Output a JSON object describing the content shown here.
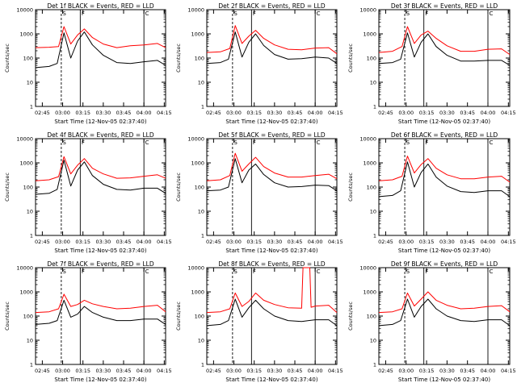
{
  "chart_data": [
    {
      "type": "line",
      "title": "Det 1f BLACK = Events, RED = LLD",
      "xlabel": "Start Time (12-Nov-05 02:37:40)",
      "ylabel": "Counts/sec",
      "yscale": "log",
      "ylim": [
        1,
        10000
      ],
      "xlim": [
        "02:40",
        "04:16"
      ],
      "grid": false,
      "x_ticks": [
        "02:45",
        "03:00",
        "03:15",
        "03:30",
        "03:45",
        "04:00",
        "04:15"
      ],
      "y_ticks": [
        "1",
        "10",
        "100",
        "1000",
        "10000"
      ],
      "markers": [
        {
          "label": "S",
          "x": "02:59",
          "style": "dashed"
        },
        {
          "label": "F",
          "x": "03:13",
          "style": "solid"
        },
        {
          "label": "C",
          "x": "04:00",
          "style": "solid"
        }
      ],
      "series": [
        {
          "color": "#ff0000",
          "x": [
            "02:40",
            "02:50",
            "02:57",
            "03:01",
            "03:06",
            "03:11",
            "03:16",
            "03:22",
            "03:30",
            "03:40",
            "03:50",
            "04:00",
            "04:10",
            "04:16"
          ],
          "values": [
            270,
            280,
            300,
            2000,
            380,
            900,
            1600,
            700,
            380,
            270,
            320,
            350,
            400,
            270
          ]
        },
        {
          "color": "#000000",
          "x": [
            "02:40",
            "02:50",
            "02:56",
            "03:01",
            "03:06",
            "03:11",
            "03:16",
            "03:22",
            "03:30",
            "03:40",
            "03:50",
            "04:00",
            "04:10",
            "04:16"
          ],
          "values": [
            40,
            45,
            60,
            1100,
            100,
            500,
            1200,
            350,
            130,
            65,
            60,
            70,
            80,
            50
          ]
        }
      ]
    },
    {
      "type": "line",
      "title": "Det 2f BLACK = Events, RED = LLD",
      "xlabel": "Start Time (12-Nov-05 02:37:40)",
      "ylabel": "Counts/sec",
      "yscale": "log",
      "ylim": [
        1,
        10000
      ],
      "xlim": [
        "02:40",
        "04:16"
      ],
      "grid": false,
      "x_ticks": [
        "02:45",
        "03:00",
        "03:15",
        "03:30",
        "03:45",
        "04:00",
        "04:15"
      ],
      "y_ticks": [
        "1",
        "10",
        "100",
        "1000",
        "10000"
      ],
      "markers": [
        {
          "label": "S",
          "x": "02:59",
          "style": "dashed"
        },
        {
          "label": "F",
          "x": "03:13",
          "style": "solid"
        },
        {
          "label": "C",
          "x": "04:00",
          "style": "solid"
        }
      ],
      "series": [
        {
          "color": "#ff0000",
          "x": [
            "02:40",
            "02:50",
            "02:57",
            "03:01",
            "03:06",
            "03:11",
            "03:16",
            "03:22",
            "03:30",
            "03:40",
            "03:50",
            "04:00",
            "04:10",
            "04:16"
          ],
          "values": [
            170,
            180,
            250,
            2200,
            400,
            800,
            1400,
            650,
            350,
            230,
            220,
            260,
            270,
            150
          ]
        },
        {
          "color": "#000000",
          "x": [
            "02:40",
            "02:50",
            "02:56",
            "03:01",
            "03:06",
            "03:11",
            "03:16",
            "03:22",
            "03:30",
            "03:40",
            "03:50",
            "04:00",
            "04:10",
            "04:16"
          ],
          "values": [
            60,
            65,
            90,
            1200,
            110,
            450,
            1000,
            330,
            140,
            90,
            95,
            110,
            100,
            60
          ]
        }
      ]
    },
    {
      "type": "line",
      "title": "Det 3f BLACK = Events, RED = LLD",
      "xlabel": "Start Time (12-Nov-05 02:37:40)",
      "ylabel": "Counts/sec",
      "yscale": "log",
      "ylim": [
        1,
        10000
      ],
      "xlim": [
        "02:40",
        "04:16"
      ],
      "grid": false,
      "x_ticks": [
        "02:45",
        "03:00",
        "03:15",
        "03:30",
        "03:45",
        "04:00",
        "04:15"
      ],
      "y_ticks": [
        "1",
        "10",
        "100",
        "1000",
        "10000"
      ],
      "markers": [
        {
          "label": "S",
          "x": "02:59",
          "style": "dashed"
        },
        {
          "label": "F",
          "x": "03:13",
          "style": "solid"
        },
        {
          "label": "C",
          "x": "04:00",
          "style": "solid"
        }
      ],
      "series": [
        {
          "color": "#ff0000",
          "x": [
            "02:40",
            "02:50",
            "02:57",
            "03:01",
            "03:06",
            "03:11",
            "03:16",
            "03:22",
            "03:30",
            "03:40",
            "03:50",
            "04:00",
            "04:10",
            "04:16"
          ],
          "values": [
            170,
            190,
            300,
            2000,
            400,
            900,
            1300,
            650,
            320,
            190,
            190,
            230,
            240,
            140
          ]
        },
        {
          "color": "#000000",
          "x": [
            "02:40",
            "02:50",
            "02:56",
            "03:01",
            "03:06",
            "03:11",
            "03:16",
            "03:22",
            "03:30",
            "03:40",
            "03:50",
            "04:00",
            "04:10",
            "04:16"
          ],
          "values": [
            60,
            65,
            90,
            1100,
            110,
            450,
            1000,
            300,
            130,
            75,
            75,
            80,
            80,
            50
          ]
        }
      ]
    },
    {
      "type": "line",
      "title": "Det 4f BLACK = Events, RED = LLD",
      "xlabel": "Start Time (12-Nov-05 02:37:40)",
      "ylabel": "Counts/sec",
      "yscale": "log",
      "ylim": [
        1,
        10000
      ],
      "xlim": [
        "02:40",
        "04:16"
      ],
      "grid": false,
      "x_ticks": [
        "02:45",
        "03:00",
        "03:15",
        "03:30",
        "03:45",
        "04:00",
        "04:15"
      ],
      "y_ticks": [
        "1",
        "10",
        "100",
        "1000",
        "10000"
      ],
      "markers": [
        {
          "label": "S",
          "x": "02:59",
          "style": "dashed"
        },
        {
          "label": "F",
          "x": "03:13",
          "style": "solid"
        },
        {
          "label": "C",
          "x": "04:00",
          "style": "solid"
        }
      ],
      "series": [
        {
          "color": "#ff0000",
          "x": [
            "02:40",
            "02:50",
            "02:57",
            "03:01",
            "03:06",
            "03:11",
            "03:16",
            "03:22",
            "03:30",
            "03:40",
            "03:50",
            "04:00",
            "04:10",
            "04:16"
          ],
          "values": [
            180,
            200,
            270,
            1800,
            350,
            800,
            1500,
            600,
            350,
            230,
            240,
            280,
            320,
            230
          ]
        },
        {
          "color": "#000000",
          "x": [
            "02:40",
            "02:50",
            "02:56",
            "03:01",
            "03:06",
            "03:11",
            "03:16",
            "03:22",
            "03:30",
            "03:40",
            "03:50",
            "04:00",
            "04:10",
            "04:16"
          ],
          "values": [
            50,
            55,
            80,
            1300,
            110,
            500,
            1100,
            300,
            130,
            80,
            75,
            90,
            90,
            55
          ]
        }
      ]
    },
    {
      "type": "line",
      "title": "Det 5f BLACK = Events, RED = LLD",
      "xlabel": "Start Time (12-Nov-05 02:37:40)",
      "ylabel": "Counts/sec",
      "yscale": "log",
      "ylim": [
        1,
        10000
      ],
      "xlim": [
        "02:40",
        "04:16"
      ],
      "grid": false,
      "x_ticks": [
        "02:45",
        "03:00",
        "03:15",
        "03:30",
        "03:45",
        "04:00",
        "04:15"
      ],
      "y_ticks": [
        "1",
        "10",
        "100",
        "1000",
        "10000"
      ],
      "markers": [
        {
          "label": "S",
          "x": "02:59",
          "style": "dashed"
        },
        {
          "label": "F",
          "x": "03:13",
          "style": "solid"
        },
        {
          "label": "C",
          "x": "04:00",
          "style": "solid"
        }
      ],
      "series": [
        {
          "color": "#ff0000",
          "x": [
            "02:40",
            "02:50",
            "02:57",
            "03:01",
            "03:06",
            "03:11",
            "03:16",
            "03:22",
            "03:30",
            "03:40",
            "03:50",
            "04:00",
            "04:10",
            "04:16"
          ],
          "values": [
            180,
            200,
            300,
            2500,
            450,
            900,
            1700,
            700,
            380,
            260,
            260,
            300,
            340,
            220
          ]
        },
        {
          "color": "#000000",
          "x": [
            "02:40",
            "02:50",
            "02:56",
            "03:01",
            "03:06",
            "03:11",
            "03:16",
            "03:22",
            "03:30",
            "03:40",
            "03:50",
            "04:00",
            "04:10",
            "04:16"
          ],
          "values": [
            70,
            75,
            100,
            1500,
            150,
            500,
            900,
            330,
            150,
            100,
            105,
            120,
            115,
            70
          ]
        }
      ]
    },
    {
      "type": "line",
      "title": "Det 6f BLACK = Events, RED = LLD",
      "xlabel": "Start Time (12-Nov-05 02:37:40)",
      "ylabel": "Counts/sec",
      "yscale": "log",
      "ylim": [
        1,
        10000
      ],
      "xlim": [
        "02:40",
        "04:16"
      ],
      "grid": false,
      "x_ticks": [
        "02:45",
        "03:00",
        "03:15",
        "03:30",
        "03:45",
        "04:00",
        "04:15"
      ],
      "y_ticks": [
        "1",
        "10",
        "100",
        "1000",
        "10000"
      ],
      "markers": [
        {
          "label": "S",
          "x": "02:59",
          "style": "dashed"
        },
        {
          "label": "F",
          "x": "03:13",
          "style": "solid"
        },
        {
          "label": "C",
          "x": "04:00",
          "style": "solid"
        }
      ],
      "series": [
        {
          "color": "#ff0000",
          "x": [
            "02:40",
            "02:50",
            "02:57",
            "03:01",
            "03:06",
            "03:11",
            "03:16",
            "03:22",
            "03:30",
            "03:40",
            "03:50",
            "04:00",
            "04:10",
            "04:16"
          ],
          "values": [
            180,
            200,
            280,
            1900,
            380,
            850,
            1500,
            600,
            320,
            220,
            220,
            260,
            280,
            160
          ]
        },
        {
          "color": "#000000",
          "x": [
            "02:40",
            "02:50",
            "02:56",
            "03:01",
            "03:06",
            "03:11",
            "03:16",
            "03:22",
            "03:30",
            "03:40",
            "03:50",
            "04:00",
            "04:10",
            "04:16"
          ],
          "values": [
            40,
            45,
            70,
            1100,
            100,
            400,
            900,
            260,
            110,
            65,
            60,
            70,
            70,
            40
          ]
        }
      ]
    },
    {
      "type": "line",
      "title": "Det 7f BLACK = Events, RED = LLD",
      "xlabel": "Start Time (12-Nov-05 02:37:40)",
      "ylabel": "Counts/sec",
      "yscale": "log",
      "ylim": [
        1,
        10000
      ],
      "xlim": [
        "02:40",
        "04:16"
      ],
      "grid": false,
      "x_ticks": [
        "02:45",
        "03:00",
        "03:15",
        "03:30",
        "03:45",
        "04:00",
        "04:15"
      ],
      "y_ticks": [
        "1",
        "10",
        "100",
        "1000",
        "10000"
      ],
      "markers": [
        {
          "label": "S",
          "x": "02:59",
          "style": "dashed"
        },
        {
          "label": "F",
          "x": "03:13",
          "style": "solid"
        },
        {
          "label": "C",
          "x": "04:00",
          "style": "solid"
        }
      ],
      "series": [
        {
          "color": "#ff0000",
          "x": [
            "02:40",
            "02:50",
            "02:57",
            "03:01",
            "03:06",
            "03:11",
            "03:16",
            "03:22",
            "03:30",
            "03:40",
            "03:50",
            "04:00",
            "04:10",
            "04:16"
          ],
          "values": [
            140,
            150,
            200,
            800,
            250,
            300,
            450,
            320,
            250,
            200,
            210,
            250,
            280,
            150
          ]
        },
        {
          "color": "#000000",
          "x": [
            "02:40",
            "02:50",
            "02:56",
            "03:01",
            "03:06",
            "03:11",
            "03:16",
            "03:22",
            "03:30",
            "03:40",
            "03:50",
            "04:00",
            "04:10",
            "04:16"
          ],
          "values": [
            45,
            50,
            65,
            450,
            90,
            120,
            250,
            140,
            90,
            65,
            65,
            75,
            75,
            45
          ]
        }
      ]
    },
    {
      "type": "line",
      "title": "Det 8f BLACK = Events, RED = LLD",
      "xlabel": "Start Time (12-Nov-05 02:37:40)",
      "ylabel": "Counts/sec",
      "yscale": "log",
      "ylim": [
        1,
        10000
      ],
      "xlim": [
        "02:40",
        "04:16"
      ],
      "grid": false,
      "x_ticks": [
        "02:45",
        "03:00",
        "03:15",
        "03:30",
        "03:45",
        "04:00",
        "04:15"
      ],
      "y_ticks": [
        "1",
        "10",
        "100",
        "1000",
        "10000"
      ],
      "markers": [
        {
          "label": "S",
          "x": "02:59",
          "style": "dashed"
        },
        {
          "label": "F",
          "x": "03:13",
          "style": "solid"
        },
        {
          "label": "C",
          "x": "04:00",
          "style": "solid"
        }
      ],
      "series": [
        {
          "color": "#ff0000",
          "x": [
            "02:40",
            "02:50",
            "02:57",
            "03:01",
            "03:06",
            "03:11",
            "03:16",
            "03:22",
            "03:30",
            "03:40",
            "03:50",
            "03:51",
            "03:56",
            "03:57",
            "04:00",
            "04:10",
            "04:16"
          ],
          "values": [
            140,
            150,
            200,
            900,
            250,
            400,
            900,
            450,
            300,
            220,
            210,
            10000,
            10000,
            230,
            260,
            280,
            140
          ]
        },
        {
          "color": "#000000",
          "x": [
            "02:40",
            "02:50",
            "02:56",
            "03:01",
            "03:06",
            "03:11",
            "03:16",
            "03:22",
            "03:30",
            "03:40",
            "03:50",
            "04:00",
            "04:10",
            "04:16"
          ],
          "values": [
            40,
            45,
            65,
            500,
            90,
            220,
            450,
            200,
            100,
            65,
            60,
            70,
            70,
            40
          ]
        }
      ]
    },
    {
      "type": "line",
      "title": "Det 9f BLACK = Events, RED = LLD",
      "xlabel": "Start Time (12-Nov-05 02:37:40)",
      "ylabel": "Counts/sec",
      "yscale": "log",
      "ylim": [
        1,
        10000
      ],
      "xlim": [
        "02:40",
        "04:16"
      ],
      "grid": false,
      "x_ticks": [
        "02:45",
        "03:00",
        "03:15",
        "03:30",
        "03:45",
        "04:00",
        "04:15"
      ],
      "y_ticks": [
        "1",
        "10",
        "100",
        "1000",
        "10000"
      ],
      "markers": [
        {
          "label": "S",
          "x": "02:59",
          "style": "dashed"
        },
        {
          "label": "F",
          "x": "03:13",
          "style": "solid"
        },
        {
          "label": "C",
          "x": "04:00",
          "style": "solid"
        }
      ],
      "series": [
        {
          "color": "#ff0000",
          "x": [
            "02:40",
            "02:50",
            "02:57",
            "03:01",
            "03:06",
            "03:11",
            "03:16",
            "03:22",
            "03:30",
            "03:40",
            "03:50",
            "04:00",
            "04:10",
            "04:16"
          ],
          "values": [
            140,
            150,
            200,
            900,
            260,
            500,
            1000,
            450,
            280,
            200,
            210,
            250,
            270,
            150
          ]
        },
        {
          "color": "#000000",
          "x": [
            "02:40",
            "02:50",
            "02:56",
            "03:01",
            "03:06",
            "03:11",
            "03:16",
            "03:22",
            "03:30",
            "03:40",
            "03:50",
            "04:00",
            "04:10",
            "04:16"
          ],
          "values": [
            40,
            45,
            65,
            500,
            90,
            250,
            500,
            200,
            100,
            65,
            60,
            70,
            70,
            40
          ]
        }
      ]
    }
  ]
}
